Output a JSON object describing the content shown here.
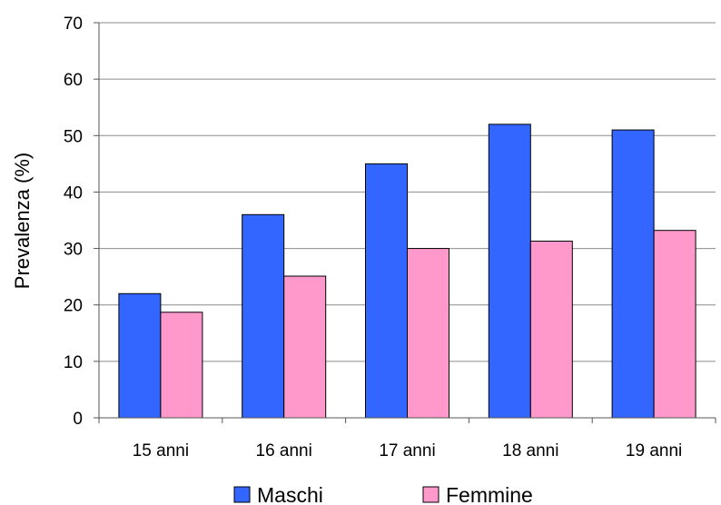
{
  "chart_data": {
    "type": "bar",
    "categories": [
      "15 anni",
      "16 anni",
      "17 anni",
      "18 anni",
      "19 anni"
    ],
    "series": [
      {
        "name": "Maschi",
        "values": [
          22,
          36,
          45,
          52,
          51
        ],
        "color": "#3366ff"
      },
      {
        "name": "Femmine",
        "values": [
          18.7,
          25.1,
          30,
          31.3,
          33.2
        ],
        "color": "#ff99cc"
      }
    ],
    "title": "",
    "xlabel": "",
    "ylabel": "Prevalenza (%)",
    "ylim": [
      0,
      70
    ],
    "yticks": [
      0,
      10,
      20,
      30,
      40,
      50,
      60,
      70
    ],
    "grid": true,
    "legend_position": "bottom"
  }
}
